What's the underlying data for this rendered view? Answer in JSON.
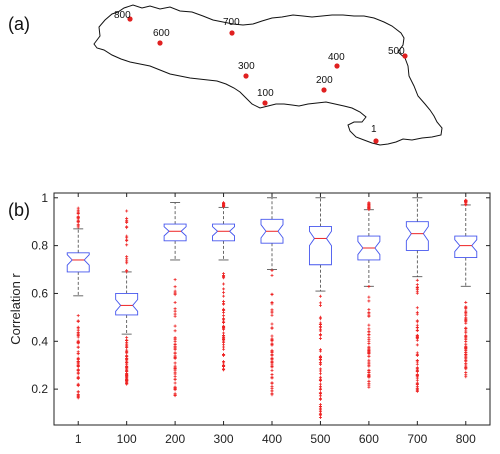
{
  "panel_labels": {
    "top": "(a)",
    "bottom": "(b)"
  },
  "map": {
    "stations": [
      {
        "label": "800"
      },
      {
        "label": "600"
      },
      {
        "label": "700"
      },
      {
        "label": "400"
      },
      {
        "label": "500"
      },
      {
        "label": "300"
      },
      {
        "label": "200"
      },
      {
        "label": "100"
      },
      {
        "label": "1"
      }
    ],
    "colors": {
      "outline": "#111111",
      "point": "#e02020"
    }
  },
  "chart_data": {
    "type": "boxplot",
    "ylabel": "Correlation r",
    "xlabel": "",
    "categories": [
      "1",
      "100",
      "200",
      "300",
      "400",
      "500",
      "600",
      "700",
      "800"
    ],
    "ylim": [
      0.05,
      1.02
    ],
    "yticks": [
      0.2,
      0.4,
      0.6,
      0.8,
      1
    ],
    "notched": true,
    "boxes": [
      {
        "q1": 0.69,
        "median": 0.74,
        "q3": 0.77,
        "whisker_low": 0.59,
        "whisker_high": 0.87,
        "outlier_low": 0.16,
        "outlier_high": 0.96
      },
      {
        "q1": 0.51,
        "median": 0.55,
        "q3": 0.6,
        "whisker_low": 0.43,
        "whisker_high": 0.69,
        "outlier_low": 0.22,
        "outlier_high": 0.96
      },
      {
        "q1": 0.82,
        "median": 0.86,
        "q3": 0.89,
        "whisker_low": 0.74,
        "whisker_high": 0.98,
        "outlier_low": 0.17,
        "outlier_high": 0.73
      },
      {
        "q1": 0.82,
        "median": 0.86,
        "q3": 0.89,
        "whisker_low": 0.74,
        "whisker_high": 0.96,
        "outlier_low": 0.27,
        "outlier_high": 0.98
      },
      {
        "q1": 0.81,
        "median": 0.86,
        "q3": 0.91,
        "whisker_low": 0.7,
        "whisker_high": 1.0,
        "outlier_low": 0.17,
        "outlier_high": 0.69
      },
      {
        "q1": 0.72,
        "median": 0.83,
        "q3": 0.88,
        "whisker_low": 0.61,
        "whisker_high": 1.0,
        "outlier_low": 0.08,
        "outlier_high": 0.61
      },
      {
        "q1": 0.74,
        "median": 0.79,
        "q3": 0.84,
        "whisker_low": 0.63,
        "whisker_high": 0.95,
        "outlier_low": 0.2,
        "outlier_high": 0.98
      },
      {
        "q1": 0.78,
        "median": 0.85,
        "q3": 0.9,
        "whisker_low": 0.67,
        "whisker_high": 1.0,
        "outlier_low": 0.19,
        "outlier_high": 0.67
      },
      {
        "q1": 0.75,
        "median": 0.8,
        "q3": 0.84,
        "whisker_low": 0.63,
        "whisker_high": 0.97,
        "outlier_low": 0.25,
        "outlier_high": 0.99
      }
    ],
    "colors": {
      "box": "#4455ee",
      "median": "#ee2222",
      "whisker": "#444444",
      "outlier": "#ee2222",
      "axis": "#222222"
    }
  }
}
